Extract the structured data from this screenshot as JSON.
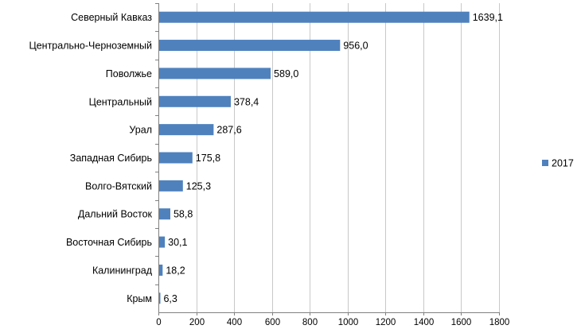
{
  "chart_data": {
    "type": "bar",
    "orientation": "horizontal",
    "title": "",
    "xlabel": "",
    "ylabel": "",
    "categories": [
      "Северный Кавказ",
      "Центрально-Черноземный",
      "Поволжье",
      "Центральный",
      "Урал",
      "Западная Сибирь",
      "Волго-Вятский",
      "Дальний Восток",
      "Восточная Сибирь",
      "Калининград",
      "Крым"
    ],
    "series": [
      {
        "name": "2017",
        "color": "#4f81bd",
        "values": [
          1639.1,
          956.0,
          589.0,
          378.4,
          287.6,
          175.8,
          125.3,
          58.8,
          30.1,
          18.2,
          6.3
        ],
        "labels": [
          "1639,1",
          "956,0",
          "589,0",
          "378,4",
          "287,6",
          "175,8",
          "125,3",
          "58,8",
          "30,1",
          "18,2",
          "6,3"
        ]
      }
    ],
    "xlim": [
      0,
      1800
    ],
    "xticks": [
      0,
      200,
      400,
      600,
      800,
      1000,
      1200,
      1400,
      1600,
      1800
    ],
    "xtick_labels": [
      "0",
      "200",
      "400",
      "600",
      "800",
      "1000",
      "1200",
      "1400",
      "1600",
      "1800"
    ],
    "grid": "vertical",
    "legend": "right"
  }
}
